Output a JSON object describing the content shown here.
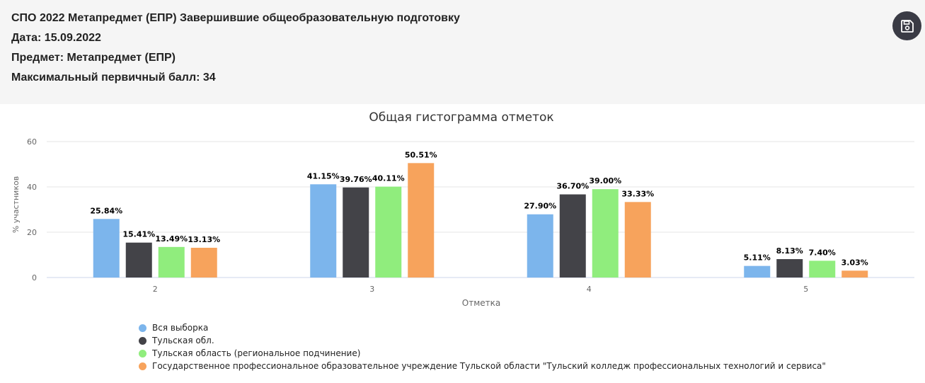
{
  "header": {
    "title": "СПО 2022 Метапредмет (ЕПР) Завершившие общеобразовательную подготовку",
    "date": "Дата: 15.09.2022",
    "subject": "Предмет: Метапредмет (ЕПР)",
    "max_score": "Максимальный первичный балл: 34"
  },
  "toolbar": {
    "save_icon": "save-icon"
  },
  "chart_data": {
    "type": "bar",
    "title": "Общая гистограмма отметок",
    "xlabel": "Отметка",
    "ylabel": "% участников",
    "ylim": [
      0,
      60
    ],
    "yticks": [
      "0",
      "20",
      "40",
      "60"
    ],
    "categories": [
      "2",
      "3",
      "4",
      "5"
    ],
    "grid": true,
    "legend_position": "bottom-left",
    "series": [
      {
        "name": "Вся выборка",
        "color": "#7cb5ec",
        "values": [
          25.84,
          41.15,
          27.9,
          5.11
        ],
        "labels": [
          "25.84%",
          "41.15%",
          "27.90%",
          "5.11%"
        ]
      },
      {
        "name": "Тульская обл.",
        "color": "#434348",
        "values": [
          15.41,
          39.76,
          36.7,
          8.13
        ],
        "labels": [
          "15.41%",
          "39.76%",
          "36.70%",
          "8.13%"
        ]
      },
      {
        "name": "Тульская область (региональное подчинение)",
        "color": "#90ed7d",
        "values": [
          13.49,
          40.11,
          39.0,
          7.4
        ],
        "labels": [
          "13.49%",
          "40.11%",
          "39.00%",
          "7.40%"
        ]
      },
      {
        "name": "Государственное профессиональное образовательное учреждение Тульской области \"Тульский колледж профессиональных технологий и сервиса\"",
        "color": "#f7a35c",
        "values": [
          13.13,
          50.51,
          33.33,
          3.03
        ],
        "labels": [
          "13.13%",
          "50.51%",
          "33.33%",
          "3.03%"
        ]
      }
    ]
  }
}
